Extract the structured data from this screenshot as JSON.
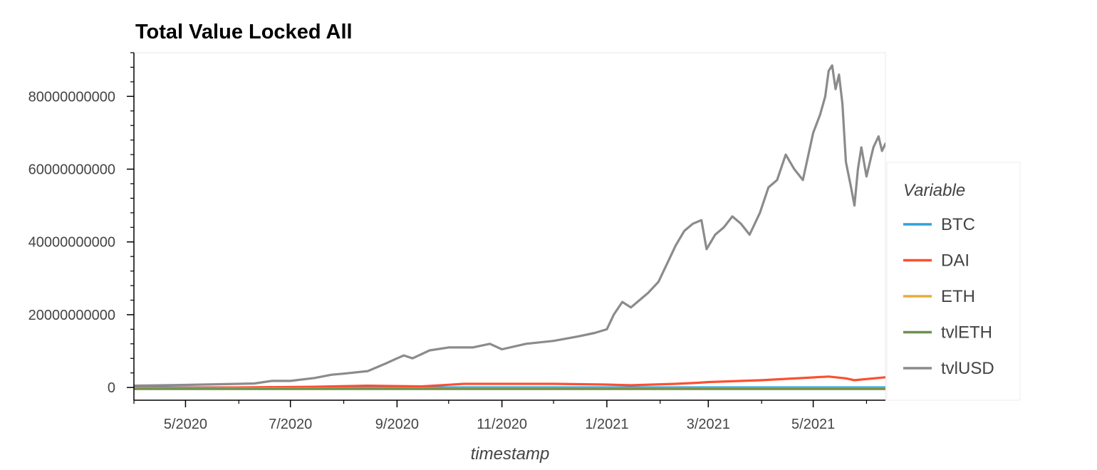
{
  "chart_data": {
    "type": "line",
    "title": "Total Value Locked All",
    "xlabel": "timestamp",
    "ylabel": "",
    "x_tick_labels": [
      "5/2020",
      "7/2020",
      "9/2020",
      "11/2020",
      "1/2021",
      "3/2021",
      "5/2021"
    ],
    "x_ticks": [
      "2020-05-01",
      "2020-07-01",
      "2020-09-01",
      "2020-11-01",
      "2021-01-01",
      "2021-03-01",
      "2021-05-01"
    ],
    "xlim": [
      "2020-04-01",
      "2021-06-12"
    ],
    "y_tick_labels": [
      "0",
      "20000000000",
      "40000000000",
      "60000000000",
      "80000000000"
    ],
    "y_ticks": [
      0,
      20000000000,
      40000000000,
      60000000000,
      80000000000
    ],
    "ylim": [
      -3500000000,
      92000000000
    ],
    "grid": false,
    "legend": {
      "title": "Variable",
      "position": "right",
      "entries": [
        "BTC",
        "DAI",
        "ETH",
        "tvlETH",
        "tvlUSD"
      ]
    },
    "series": [
      {
        "name": "BTC",
        "color": "#30a2da",
        "points": [
          [
            "2020-04-01",
            0
          ],
          [
            "2021-06-12",
            0
          ]
        ]
      },
      {
        "name": "DAI",
        "color": "#fc4f30",
        "points": [
          [
            "2020-04-01",
            -200000000
          ],
          [
            "2020-06-01",
            0
          ],
          [
            "2020-07-15",
            200000000
          ],
          [
            "2020-08-15",
            500000000
          ],
          [
            "2020-09-15",
            300000000
          ],
          [
            "2020-10-10",
            1000000000
          ],
          [
            "2020-11-01",
            1000000000
          ],
          [
            "2020-12-01",
            1000000000
          ],
          [
            "2020-12-31",
            800000000
          ],
          [
            "2021-01-15",
            600000000
          ],
          [
            "2021-02-10",
            1000000000
          ],
          [
            "2021-02-23",
            1300000000
          ],
          [
            "2021-03-01",
            1500000000
          ],
          [
            "2021-04-01",
            2000000000
          ],
          [
            "2021-05-10",
            3000000000
          ],
          [
            "2021-05-20",
            2500000000
          ],
          [
            "2021-05-25",
            2000000000
          ],
          [
            "2021-06-12",
            2800000000
          ]
        ]
      },
      {
        "name": "ETH",
        "color": "#e5ae38",
        "points": [
          [
            "2020-04-01",
            -300000000
          ],
          [
            "2021-06-12",
            -300000000
          ]
        ]
      },
      {
        "name": "tvlETH",
        "color": "#6d904f",
        "points": [
          [
            "2020-04-01",
            -400000000
          ],
          [
            "2021-06-12",
            -400000000
          ]
        ]
      },
      {
        "name": "tvlUSD",
        "color": "#8b8b8b",
        "points": [
          [
            "2020-04-01",
            500000000
          ],
          [
            "2020-05-01",
            700000000
          ],
          [
            "2020-06-01",
            1000000000
          ],
          [
            "2020-06-10",
            1100000000
          ],
          [
            "2020-06-20",
            1800000000
          ],
          [
            "2020-07-01",
            1800000000
          ],
          [
            "2020-07-15",
            2600000000
          ],
          [
            "2020-07-25",
            3500000000
          ],
          [
            "2020-08-01",
            3800000000
          ],
          [
            "2020-08-15",
            4500000000
          ],
          [
            "2020-08-25",
            6500000000
          ],
          [
            "2020-09-01",
            8000000000
          ],
          [
            "2020-09-05",
            8800000000
          ],
          [
            "2020-09-10",
            8000000000
          ],
          [
            "2020-09-20",
            10200000000
          ],
          [
            "2020-10-01",
            11000000000
          ],
          [
            "2020-10-15",
            11000000000
          ],
          [
            "2020-10-25",
            12000000000
          ],
          [
            "2020-11-01",
            10500000000
          ],
          [
            "2020-11-15",
            12000000000
          ],
          [
            "2020-12-01",
            12800000000
          ],
          [
            "2020-12-15",
            14000000000
          ],
          [
            "2020-12-25",
            15000000000
          ],
          [
            "2021-01-01",
            16000000000
          ],
          [
            "2021-01-05",
            20000000000
          ],
          [
            "2021-01-10",
            23500000000
          ],
          [
            "2021-01-15",
            22000000000
          ],
          [
            "2021-01-20",
            24000000000
          ],
          [
            "2021-01-25",
            26000000000
          ],
          [
            "2021-01-31",
            29000000000
          ],
          [
            "2021-02-05",
            34000000000
          ],
          [
            "2021-02-10",
            39000000000
          ],
          [
            "2021-02-15",
            43000000000
          ],
          [
            "2021-02-20",
            45000000000
          ],
          [
            "2021-02-25",
            46000000000
          ],
          [
            "2021-02-28",
            38000000000
          ],
          [
            "2021-03-05",
            42000000000
          ],
          [
            "2021-03-10",
            44000000000
          ],
          [
            "2021-03-15",
            47000000000
          ],
          [
            "2021-03-20",
            45000000000
          ],
          [
            "2021-03-25",
            42000000000
          ],
          [
            "2021-03-31",
            48000000000
          ],
          [
            "2021-04-05",
            55000000000
          ],
          [
            "2021-04-10",
            57000000000
          ],
          [
            "2021-04-15",
            64000000000
          ],
          [
            "2021-04-20",
            60000000000
          ],
          [
            "2021-04-25",
            57000000000
          ],
          [
            "2021-05-01",
            70000000000
          ],
          [
            "2021-05-05",
            75000000000
          ],
          [
            "2021-05-08",
            80000000000
          ],
          [
            "2021-05-10",
            87000000000
          ],
          [
            "2021-05-12",
            88500000000
          ],
          [
            "2021-05-14",
            82000000000
          ],
          [
            "2021-05-16",
            86000000000
          ],
          [
            "2021-05-18",
            78000000000
          ],
          [
            "2021-05-20",
            62000000000
          ],
          [
            "2021-05-23",
            55000000000
          ],
          [
            "2021-05-25",
            50000000000
          ],
          [
            "2021-05-27",
            60000000000
          ],
          [
            "2021-05-29",
            66000000000
          ],
          [
            "2021-06-01",
            58000000000
          ],
          [
            "2021-06-05",
            66000000000
          ],
          [
            "2021-06-08",
            69000000000
          ],
          [
            "2021-06-10",
            65000000000
          ],
          [
            "2021-06-12",
            67000000000
          ]
        ]
      }
    ]
  }
}
